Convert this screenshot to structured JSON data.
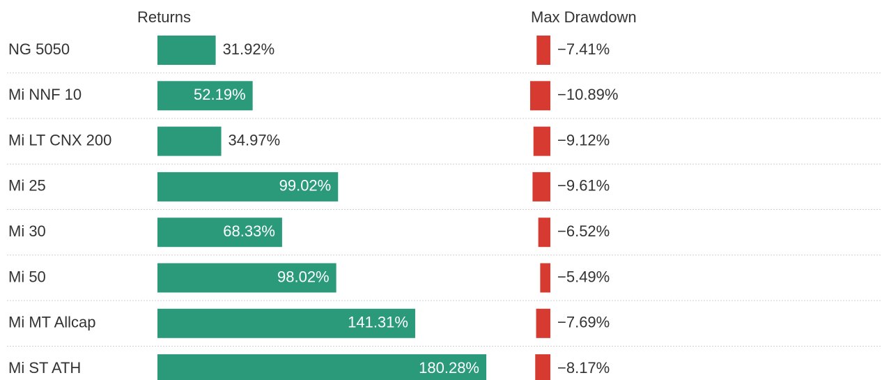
{
  "chart_data": {
    "type": "bar",
    "orientation": "horizontal",
    "categories": [
      "NG 5050",
      "Mi NNF 10",
      "Mi LT CNX 200",
      "Mi 25",
      "Mi 30",
      "Mi 50",
      "Mi MT Allcap",
      "Mi ST ATH"
    ],
    "series": [
      {
        "name": "Returns",
        "color": "#2a9a7a",
        "values": [
          31.92,
          52.19,
          34.97,
          99.02,
          68.33,
          98.02,
          141.31,
          180.28
        ],
        "value_labels": [
          "31.92%",
          "52.19%",
          "34.97%",
          "99.02%",
          "68.33%",
          "98.02%",
          "141.31%",
          "180.28%"
        ]
      },
      {
        "name": "Max Drawdown",
        "color": "#d63a30",
        "values": [
          -7.41,
          -10.89,
          -9.12,
          -9.61,
          -6.52,
          -5.49,
          -7.69,
          -8.17
        ],
        "value_labels": [
          "−7.41%",
          "−10.89%",
          "−9.12%",
          "−9.61%",
          "−6.52%",
          "−5.49%",
          "−7.69%",
          "−8.17%"
        ]
      }
    ]
  }
}
